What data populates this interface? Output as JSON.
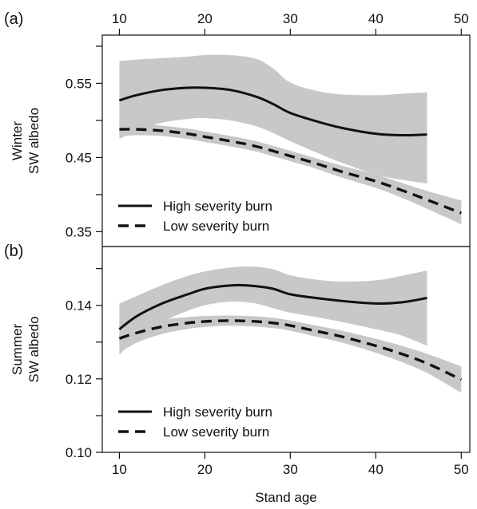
{
  "chart_data": {
    "type": "line",
    "xlabel": "Stand age",
    "xlim": [
      8,
      51
    ],
    "xticks": [
      10,
      20,
      30,
      40,
      50
    ],
    "panels": [
      {
        "panel_label": "(a)",
        "ylabel_line1": "Winter",
        "ylabel_line2": "SW albedo",
        "ylim": [
          0.33,
          0.615
        ],
        "yticks_labeled": [
          "0.35",
          "0.45",
          "0.55"
        ],
        "yticks_minor": [
          0.4,
          0.5,
          0.6
        ],
        "legend_position": "bottom-left",
        "series": [
          {
            "name": "High severity burn",
            "style": "solid",
            "x": [
              10,
              12,
              15,
              18,
              20,
              23,
              26,
              28,
              30,
              33,
              36,
              40,
              43,
              46
            ],
            "y": [
              0.527,
              0.534,
              0.541,
              0.544,
              0.544,
              0.541,
              0.532,
              0.522,
              0.51,
              0.499,
              0.49,
              0.482,
              0.48,
              0.481
            ],
            "lower": [
              0.475,
              0.486,
              0.497,
              0.502,
              0.503,
              0.5,
              0.492,
              0.483,
              0.472,
              0.457,
              0.443,
              0.427,
              0.42,
              0.415
            ],
            "upper": [
              0.58,
              0.582,
              0.584,
              0.586,
              0.588,
              0.588,
              0.583,
              0.57,
              0.551,
              0.54,
              0.535,
              0.534,
              0.536,
              0.538
            ]
          },
          {
            "name": "Low severity burn",
            "style": "dashed",
            "x": [
              10,
              12,
              15,
              18,
              20,
              23,
              26,
              30,
              33,
              36,
              40,
              43,
              46,
              50
            ],
            "y": [
              0.488,
              0.488,
              0.486,
              0.482,
              0.478,
              0.472,
              0.465,
              0.452,
              0.442,
              0.431,
              0.418,
              0.406,
              0.393,
              0.375
            ],
            "lower": [
              0.478,
              0.48,
              0.479,
              0.475,
              0.471,
              0.465,
              0.458,
              0.445,
              0.435,
              0.423,
              0.409,
              0.396,
              0.381,
              0.36
            ],
            "upper": [
              0.498,
              0.496,
              0.493,
              0.489,
              0.485,
              0.479,
              0.472,
              0.459,
              0.449,
              0.439,
              0.427,
              0.416,
              0.405,
              0.392
            ]
          }
        ]
      },
      {
        "panel_label": "(b)",
        "ylabel_line1": "Summer",
        "ylabel_line2": "SW albedo",
        "ylim": [
          0.1,
          0.156
        ],
        "yticks_labeled": [
          "0.10",
          "0.12",
          "0.14"
        ],
        "yticks_minor": [
          0.11,
          0.13,
          0.15
        ],
        "legend_position": "bottom-left",
        "series": [
          {
            "name": "High severity burn",
            "style": "solid",
            "x": [
              10,
              12,
              15,
              18,
              20,
              22,
              24,
              26,
              28,
              30,
              33,
              36,
              40,
              43,
              46
            ],
            "y": [
              0.1335,
              0.137,
              0.1405,
              0.143,
              0.1445,
              0.1452,
              0.1455,
              0.1452,
              0.1445,
              0.143,
              0.142,
              0.1412,
              0.1405,
              0.1408,
              0.142
            ],
            "lower": [
              0.1265,
              0.131,
              0.1355,
              0.1385,
              0.14,
              0.1408,
              0.141,
              0.1405,
              0.1392,
              0.138,
              0.1368,
              0.1355,
              0.1335,
              0.1318,
              0.129
            ],
            "upper": [
              0.1405,
              0.1425,
              0.1455,
              0.148,
              0.1492,
              0.15,
              0.1505,
              0.1505,
              0.1498,
              0.1482,
              0.147,
              0.1465,
              0.1468,
              0.148,
              0.1495
            ]
          },
          {
            "name": "Low severity burn",
            "style": "dashed",
            "x": [
              10,
              12,
              15,
              18,
              20,
              22,
              24,
              26,
              28,
              30,
              33,
              36,
              40,
              43,
              46,
              50
            ],
            "y": [
              0.131,
              0.1325,
              0.1342,
              0.1352,
              0.1356,
              0.1358,
              0.1358,
              0.1356,
              0.1352,
              0.1345,
              0.133,
              0.1315,
              0.129,
              0.1268,
              0.1242,
              0.1198
            ],
            "lower": [
              0.127,
              0.1298,
              0.1322,
              0.1336,
              0.1341,
              0.1344,
              0.1344,
              0.1342,
              0.1338,
              0.1331,
              0.1315,
              0.1299,
              0.1271,
              0.1246,
              0.1216,
              0.1162
            ],
            "upper": [
              0.135,
              0.1352,
              0.1362,
              0.1368,
              0.1371,
              0.1372,
              0.1372,
              0.137,
              0.1366,
              0.1359,
              0.1345,
              0.1331,
              0.1309,
              0.129,
              0.1268,
              0.1234
            ]
          }
        ]
      }
    ]
  }
}
